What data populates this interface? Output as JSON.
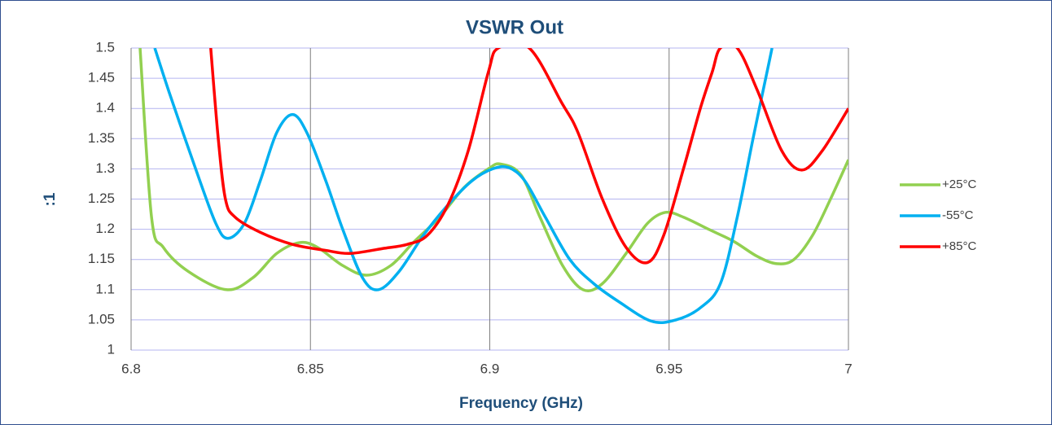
{
  "chart_data": {
    "type": "line",
    "title": "VSWR Out",
    "x_label": "Frequency (GHz)",
    "y_label": ":1",
    "xlim": [
      6.8,
      7
    ],
    "xticks": [
      6.8,
      6.85,
      6.9,
      6.95,
      7
    ],
    "ylim": [
      1,
      1.5
    ],
    "yticks": [
      1,
      1.05,
      1.1,
      1.15,
      1.2,
      1.25,
      1.3,
      1.35,
      1.4,
      1.45,
      1.5
    ],
    "grid": true,
    "legend": "right",
    "series": [
      {
        "name": "+25°C",
        "color": "#92d050",
        "x": [
          6.8025,
          6.8057,
          6.809,
          6.816,
          6.8266,
          6.834,
          6.8406,
          6.847,
          6.852,
          6.859,
          6.8656,
          6.8724,
          6.879,
          6.886,
          6.893,
          6.8996,
          6.903,
          6.9087,
          6.914,
          6.9203,
          6.926,
          6.9314,
          6.938,
          6.944,
          6.949,
          6.954,
          6.961,
          6.968,
          6.9746,
          6.98,
          6.9848,
          6.99,
          6.995,
          7.0
        ],
        "values": [
          1.5,
          1.22,
          1.17,
          1.13,
          1.1,
          1.12,
          1.16,
          1.178,
          1.17,
          1.14,
          1.124,
          1.14,
          1.18,
          1.22,
          1.27,
          1.3,
          1.308,
          1.29,
          1.22,
          1.14,
          1.1,
          1.11,
          1.16,
          1.21,
          1.228,
          1.22,
          1.2,
          1.18,
          1.155,
          1.143,
          1.15,
          1.19,
          1.25,
          1.315
        ]
      },
      {
        "name": "-55°C",
        "color": "#00b0f0",
        "x": [
          6.8066,
          6.811,
          6.818,
          6.8236,
          6.827,
          6.8316,
          6.836,
          6.8406,
          6.845,
          6.849,
          6.8543,
          6.859,
          6.8645,
          6.869,
          6.8747,
          6.8815,
          6.8883,
          6.895,
          6.9008,
          6.9053,
          6.9098,
          6.9155,
          6.9223,
          6.929,
          6.936,
          6.945,
          6.9519,
          6.9587,
          6.9643,
          6.969,
          6.9734,
          6.978,
          6.9787
        ],
        "values": [
          1.5,
          1.42,
          1.3,
          1.21,
          1.185,
          1.21,
          1.28,
          1.36,
          1.39,
          1.36,
          1.28,
          1.2,
          1.12,
          1.1,
          1.13,
          1.19,
          1.24,
          1.28,
          1.3,
          1.302,
          1.28,
          1.22,
          1.15,
          1.11,
          1.08,
          1.048,
          1.05,
          1.07,
          1.11,
          1.22,
          1.35,
          1.48,
          1.5
        ]
      },
      {
        "name": "+85°C",
        "color": "#ff0000",
        "x": [
          6.8222,
          6.8243,
          6.8263,
          6.829,
          6.836,
          6.845,
          6.8543,
          6.861,
          6.87,
          6.877,
          6.8826,
          6.8883,
          6.894,
          6.8996,
          6.9024,
          6.911,
          6.92,
          6.9246,
          6.9314,
          6.938,
          6.944,
          6.9485,
          6.954,
          6.9587,
          6.962,
          6.9643,
          6.969,
          6.9746,
          6.9814,
          6.987,
          6.9927,
          7.0
        ],
        "values": [
          1.5,
          1.35,
          1.25,
          1.22,
          1.195,
          1.175,
          1.165,
          1.16,
          1.168,
          1.175,
          1.19,
          1.24,
          1.33,
          1.46,
          1.5,
          1.5,
          1.41,
          1.36,
          1.25,
          1.17,
          1.145,
          1.19,
          1.3,
          1.4,
          1.46,
          1.5,
          1.5,
          1.43,
          1.33,
          1.298,
          1.33,
          1.4
        ]
      }
    ]
  }
}
